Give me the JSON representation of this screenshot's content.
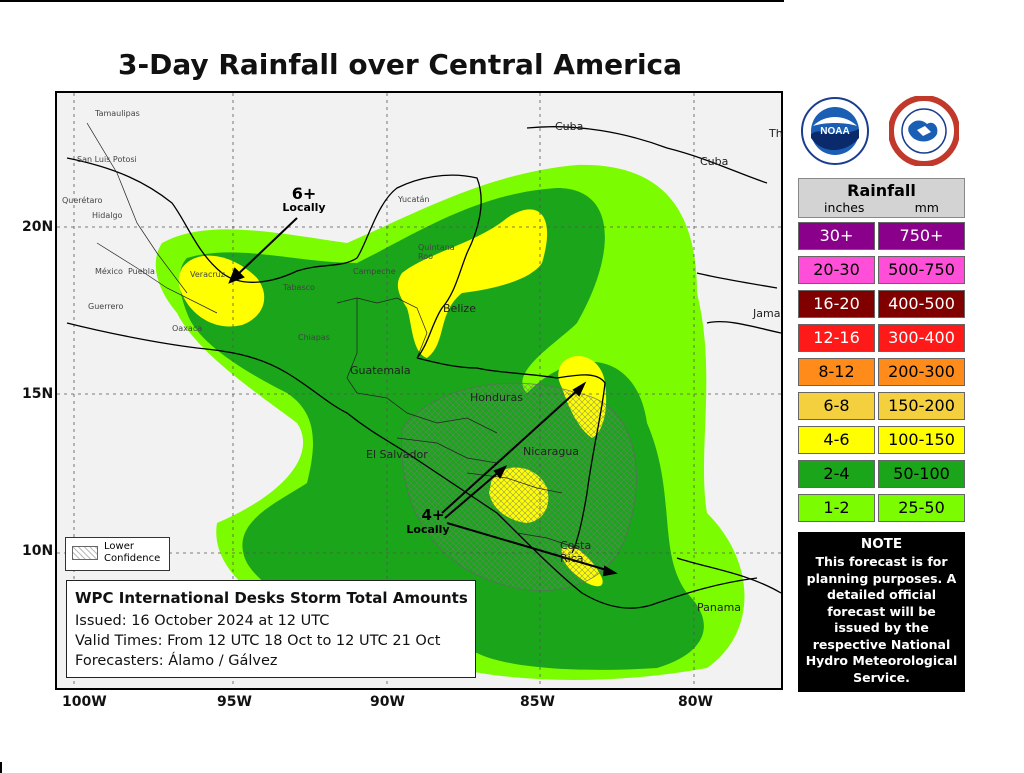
{
  "title": "3-Day Rainfall over Central America",
  "map": {
    "lon_labels": [
      "100W",
      "95W",
      "90W",
      "85W",
      "80W"
    ],
    "lat_labels": [
      "20N",
      "15N",
      "10N"
    ],
    "region_labels": {
      "tamaulipas": "Tamaulipas",
      "san_luis_potosi": "San Luis Potosi",
      "queretaro": "Querétaro",
      "hidalgo": "Hidalgo",
      "mexico": "México",
      "puebla": "Puebla",
      "guerrero": "Guerrero",
      "oaxaca": "Oaxaca",
      "veracruz": "Veracruz",
      "tabasco": "Tabasco",
      "chiapas": "Chiapas",
      "campeche": "Campeche",
      "yucatan": "Yucatán",
      "quintana_roo": "Quintana Roo",
      "belize": "Belize",
      "guatemala": "Guatemala",
      "honduras": "Honduras",
      "el_salvador": "El Salvador",
      "nicaragua": "Nicaragua",
      "costa_rica": "Costa Rica",
      "panama": "Panama",
      "cuba1": "Cuba",
      "cuba2": "Cuba",
      "jamaica": "Jama",
      "th": "Th"
    },
    "annotations": {
      "six_plus": "6+",
      "six_locally": "Locally",
      "four_plus": "4+",
      "four_locally": "Locally"
    },
    "lower_confidence_label": [
      "Lower",
      "Confidence"
    ]
  },
  "info_box": {
    "heading": "WPC International Desks Storm Total Amounts",
    "issued": "Issued:  16 October 2024 at 12 UTC",
    "valid": "Valid Times:  From 12 UTC 18 Oct  to 12 UTC 21 Oct",
    "forecasters": "Forecasters: Álamo / Gálvez"
  },
  "logos": {
    "noaa": "NOAA",
    "nws": "NATIONAL WEATHER SERVICE"
  },
  "legend": {
    "title": "Rainfall",
    "unit_in": "inches",
    "unit_mm": "mm",
    "rows": [
      {
        "inches": "30+",
        "mm": "750+",
        "color": "#8B008B"
      },
      {
        "inches": "20-30",
        "mm": "500-750",
        "color": "#FF4FD8"
      },
      {
        "inches": "16-20",
        "mm": "400-500",
        "color": "#800000"
      },
      {
        "inches": "12-16",
        "mm": "300-400",
        "color": "#FF1A1A"
      },
      {
        "inches": "8-12",
        "mm": "200-300",
        "color": "#FF8C1A"
      },
      {
        "inches": "6-8",
        "mm": "150-200",
        "color": "#F4D03F"
      },
      {
        "inches": "4-6",
        "mm": "100-150",
        "color": "#FFFF00"
      },
      {
        "inches": "2-4",
        "mm": "50-100",
        "color": "#1AA51A"
      },
      {
        "inches": "1-2",
        "mm": "25-50",
        "color": "#7CFC00"
      }
    ]
  },
  "note": {
    "heading": "NOTE",
    "body": "This forecast is for planning purposes. A detailed official forecast will be issued by the respective National Hydro Meteorological Service."
  }
}
